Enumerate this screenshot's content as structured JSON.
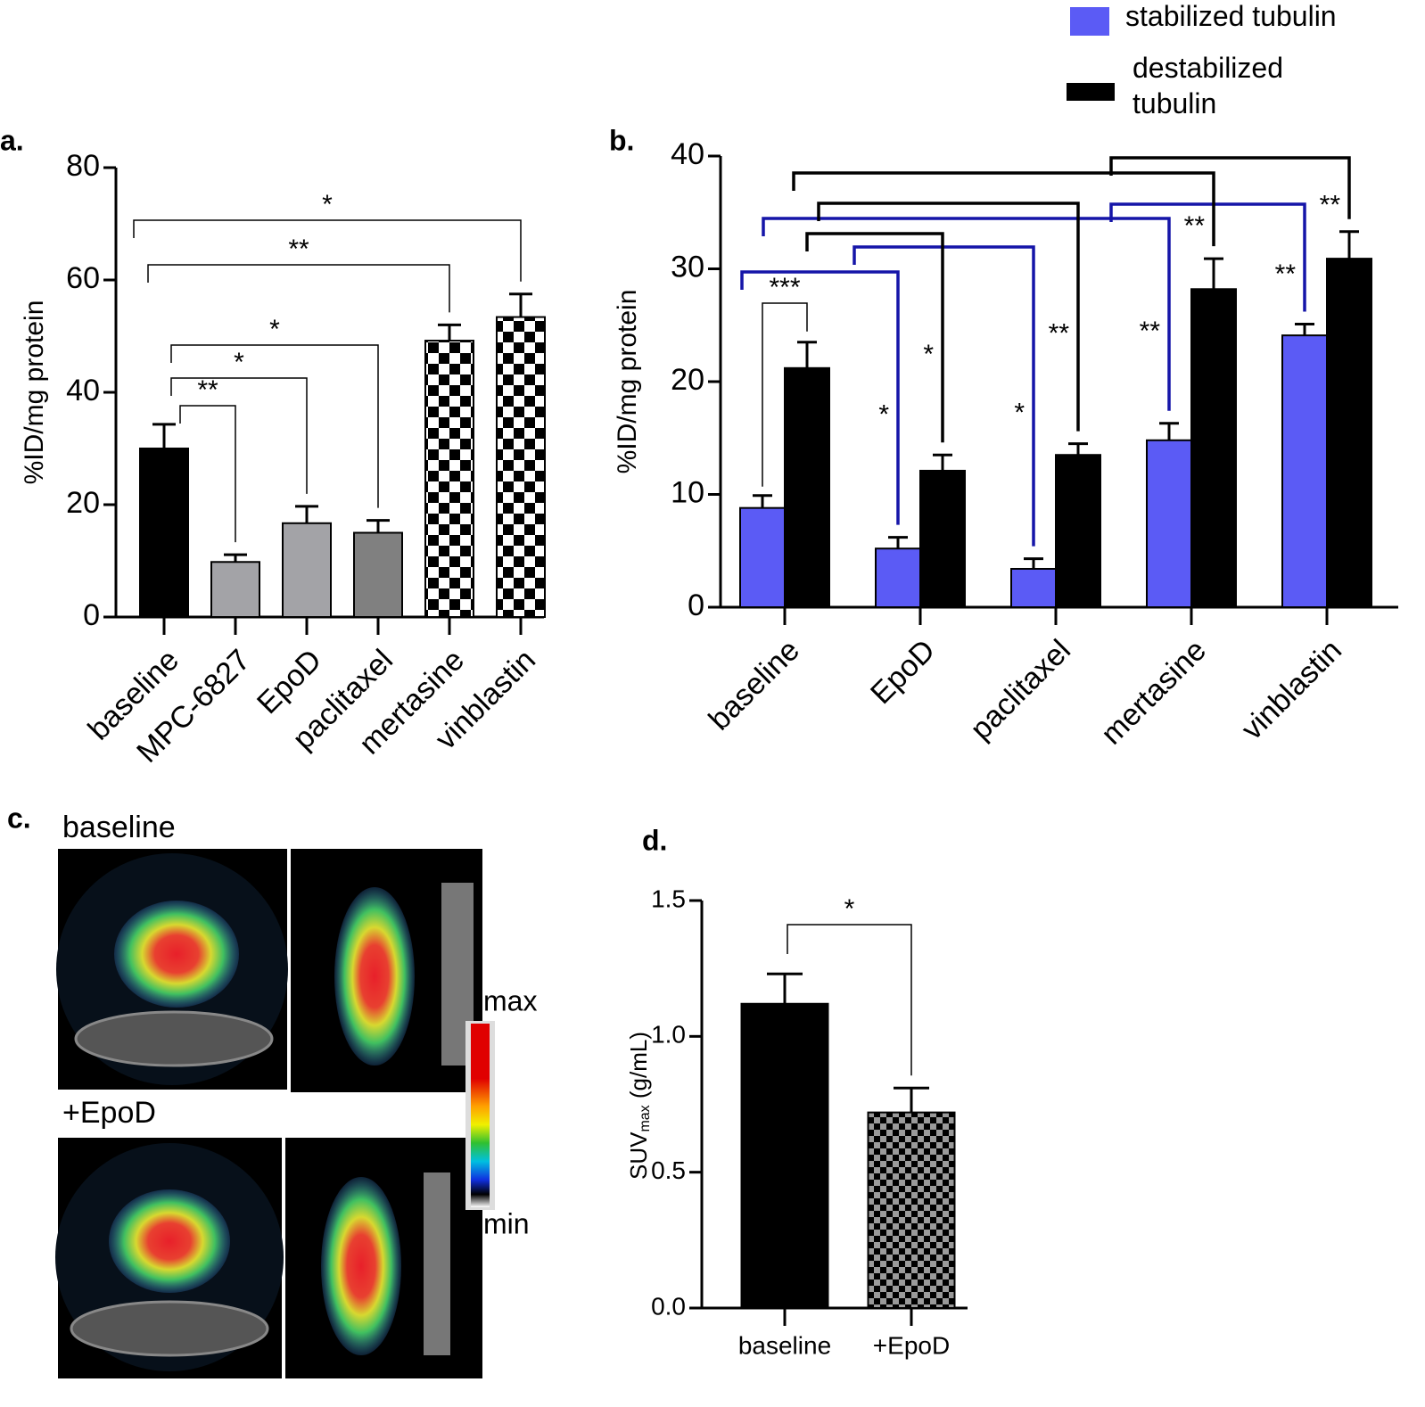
{
  "chart_data": [
    {
      "type": "bar",
      "panel_label": "a.",
      "ylabel": "%ID/mg protein",
      "categories": [
        "baseline",
        "MPC-6827",
        "EpoD",
        "paclitaxel",
        "mertasine",
        "vinblastin"
      ],
      "values": [
        30,
        9.8,
        16.7,
        15,
        49.2,
        53.4
      ],
      "errors": [
        4.3,
        1.3,
        3,
        2.2,
        2.8,
        4.1
      ],
      "colors": [
        "#000000",
        "#a3a3a7",
        "#a3a3a7",
        "#808080",
        "checkerboard",
        "checkerboard"
      ],
      "ylim": [
        0,
        80
      ],
      "yticks": [
        0,
        20,
        40,
        60,
        80
      ],
      "annotations": [
        {
          "from": 0,
          "to": 1,
          "label": "**"
        },
        {
          "from": 0,
          "to": 2,
          "label": "*"
        },
        {
          "from": 0,
          "to": 3,
          "label": "*"
        },
        {
          "from": 0,
          "to": 4,
          "label": "**"
        },
        {
          "from": 0,
          "to": 5,
          "label": "*"
        }
      ]
    },
    {
      "type": "grouped-bar",
      "panel_label": "b.",
      "ylabel": "%ID/mg protein",
      "categories": [
        "baseline",
        "EpoD",
        "paclitaxel",
        "mertasine",
        "vinblastin"
      ],
      "series": [
        {
          "name": "stabilized tubulin",
          "color": "#5b5bf5",
          "values": [
            8.8,
            5.2,
            3.4,
            14.8,
            24.1
          ],
          "errors": [
            1.1,
            1.0,
            0.9,
            1.5,
            1.0
          ]
        },
        {
          "name": "destabilized tubulin",
          "color": "#000000",
          "values": [
            21.2,
            12.1,
            13.5,
            28.2,
            30.9
          ],
          "errors": [
            2.3,
            1.4,
            1.0,
            2.7,
            2.4
          ]
        }
      ],
      "ylim": [
        0,
        40
      ],
      "yticks": [
        0,
        10,
        20,
        30,
        40
      ],
      "annotations": [
        {
          "from": [
            0,
            0
          ],
          "to": [
            0,
            1
          ],
          "label": "***",
          "color": "#000000"
        },
        {
          "from": [
            0,
            0
          ],
          "to": [
            1,
            0
          ],
          "label": "*",
          "color": "#1515a8"
        },
        {
          "from": [
            0,
            0
          ],
          "to": [
            2,
            0
          ],
          "label": "*",
          "color": "#1515a8"
        },
        {
          "from": [
            0,
            0
          ],
          "to": [
            3,
            0
          ],
          "label": "**",
          "color": "#1515a8"
        },
        {
          "from": [
            0,
            0
          ],
          "to": [
            4,
            0
          ],
          "label": "**",
          "color": "#1515a8"
        },
        {
          "from": [
            0,
            1
          ],
          "to": [
            1,
            1
          ],
          "label": "*",
          "color": "#000000"
        },
        {
          "from": [
            0,
            1
          ],
          "to": [
            2,
            1
          ],
          "label": "**",
          "color": "#000000"
        },
        {
          "from": [
            0,
            1
          ],
          "to": [
            3,
            1
          ],
          "label": "**",
          "color": "#000000"
        },
        {
          "from": [
            0,
            1
          ],
          "to": [
            4,
            1
          ],
          "label": "**",
          "color": "#000000"
        }
      ]
    },
    {
      "type": "bar",
      "panel_label": "d.",
      "ylabel": "SUV",
      "ylabel_sub": "max",
      "ylabel_unit": " (g/mL)",
      "categories": [
        "baseline",
        "+EpoD"
      ],
      "values": [
        1.12,
        0.72
      ],
      "errors": [
        0.11,
        0.09
      ],
      "colors": [
        "#000000",
        "checkerboard-gray"
      ],
      "ylim": [
        0,
        1.5
      ],
      "yticks": [
        {
          "value": 0,
          "label": "0.0"
        },
        0.5,
        {
          "value": 1,
          "label": "1.0"
        },
        1.5
      ],
      "annotations": [
        {
          "from": 0,
          "to": 1,
          "label": "*"
        }
      ]
    }
  ],
  "panel_c": {
    "panel_label": "c.",
    "top_label": "baseline",
    "bottom_label": "+EpoD",
    "scale_max": "max",
    "scale_min": "min"
  }
}
